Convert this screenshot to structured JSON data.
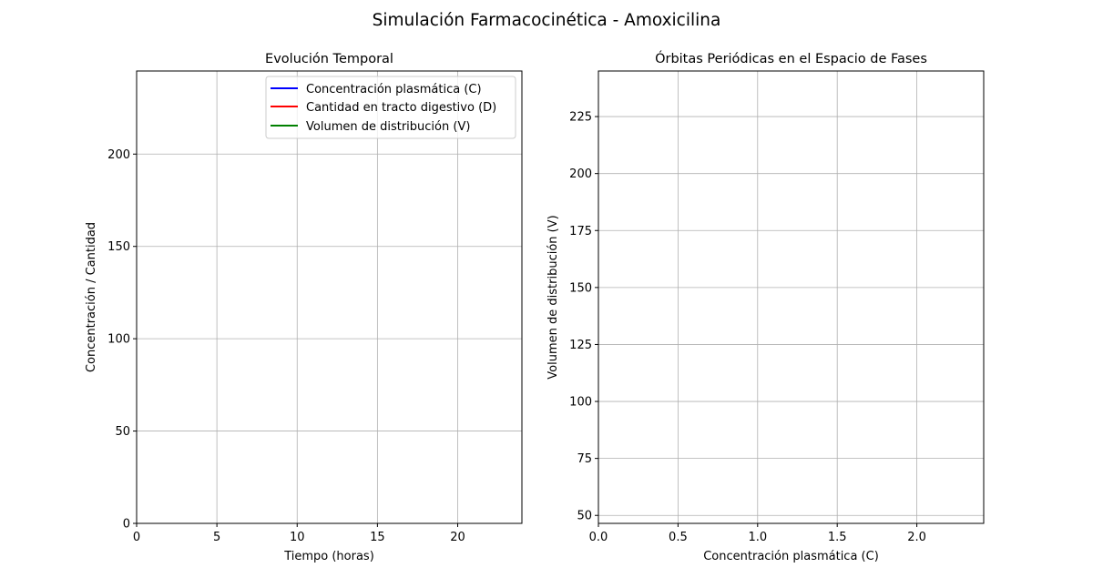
{
  "figure": {
    "suptitle": "Simulación Farmacocinética - Amoxicilina"
  },
  "chart_data": [
    {
      "type": "line",
      "title": "Evolución Temporal",
      "xlabel": "Tiempo (horas)",
      "ylabel": "Concentración / Cantidad",
      "xlim": [
        0,
        24
      ],
      "ylim": [
        0,
        245
      ],
      "xticks": [
        0,
        5,
        10,
        15,
        20
      ],
      "yticks": [
        0,
        50,
        100,
        150,
        200
      ],
      "grid": true,
      "legend_position": "top-right",
      "series": [
        {
          "name": "Concentración plasmática (C)",
          "color": "#0000ff",
          "x": [],
          "y": []
        },
        {
          "name": "Cantidad en tracto digestivo (D)",
          "color": "#ff0000",
          "x": [],
          "y": []
        },
        {
          "name": "Volumen de distribución (V)",
          "color": "#008000",
          "x": [],
          "y": []
        }
      ]
    },
    {
      "type": "line",
      "title": "Órbitas Periódicas en el Espacio de Fases",
      "xlabel": "Concentración plasmática (C)",
      "ylabel": "Volumen de distribución (V)",
      "xlim": [
        0,
        2.42
      ],
      "ylim": [
        46.5,
        245
      ],
      "xticks": [
        0.0,
        0.5,
        1.0,
        1.5,
        2.0
      ],
      "xtick_labels": [
        "0.0",
        "0.5",
        "1.0",
        "1.5",
        "2.0"
      ],
      "yticks": [
        50,
        75,
        100,
        125,
        150,
        175,
        200,
        225
      ],
      "grid": true,
      "series": []
    }
  ]
}
